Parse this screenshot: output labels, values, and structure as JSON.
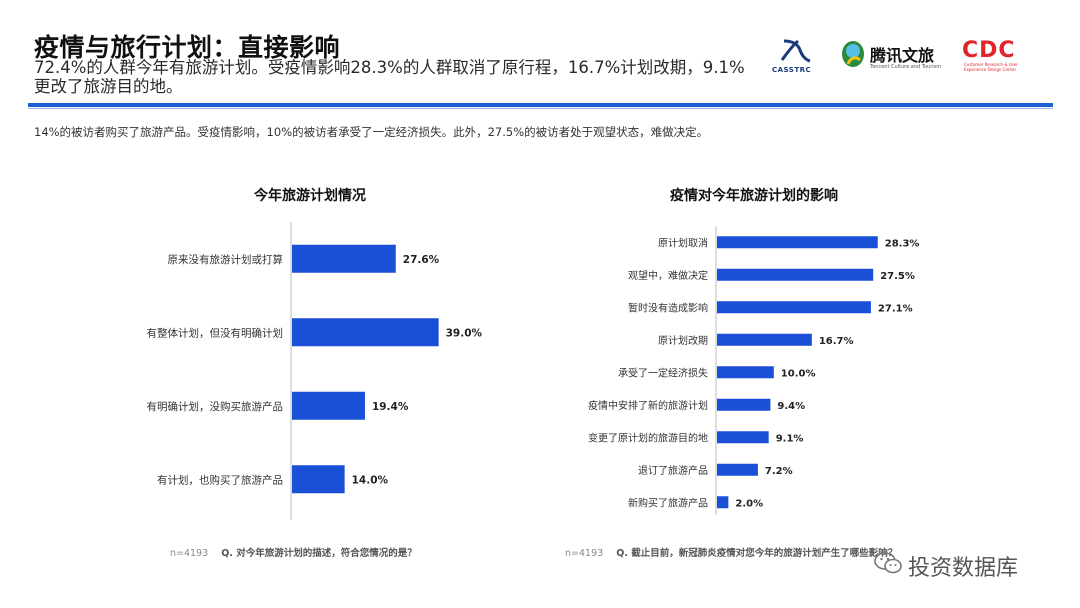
{
  "header": {
    "title": "疫情与旅行计划：直接影响",
    "subtitle": "72.4%的人群今年有旅游计划。受疫情影响28.3%的人群取消了原行程，16.7%计划改期，9.1%更改了旅游目的地。"
  },
  "logos": {
    "casstrc": "CASSTRC",
    "tencent": "腾讯文旅",
    "tencent_sub": "Tencent Culture and Tourism",
    "cdc": "CDC",
    "cdc_sub": "Customer Research & User Experience Design Center"
  },
  "note": "14%的被访者购买了旅游产品。受疫情影响，10%的被访者承受了一定经济损失。此外，27.5%的被访者处于观望状态，难做决定。",
  "chart_data": [
    {
      "type": "bar",
      "orientation": "horizontal",
      "title": "今年旅游计划情况",
      "categories": [
        "原来没有旅游计划或打算",
        "有整体计划，但没有明确计划",
        "有明确计划，没购买旅游产品",
        "有计划，也购买了旅游产品"
      ],
      "values": [
        27.6,
        39.0,
        19.4,
        14.0
      ],
      "labels": [
        "27.6%",
        "39.0%",
        "19.4%",
        "14.0%"
      ],
      "unit": "%",
      "color": "#1a4fd8"
    },
    {
      "type": "bar",
      "orientation": "horizontal",
      "title": "疫情对今年旅游计划的影响",
      "categories": [
        "原计划取消",
        "观望中，难做决定",
        "暂时没有造成影响",
        "原计划改期",
        "承受了一定经济损失",
        "疫情中安排了新的旅游计划",
        "变更了原计划的旅游目的地",
        "退订了旅游产品",
        "新购买了旅游产品"
      ],
      "values": [
        28.3,
        27.5,
        27.1,
        16.7,
        10.0,
        9.4,
        9.1,
        7.2,
        2.0
      ],
      "labels": [
        "28.3%",
        "27.5%",
        "27.1%",
        "16.7%",
        "10.0%",
        "9.4%",
        "9.1%",
        "7.2%",
        "2.0%"
      ],
      "unit": "%",
      "color": "#1a4fd8"
    }
  ],
  "footnotes": {
    "left_code": "n=4193",
    "left_q": "Q. 对今年旅游计划的描述，符合您情况的是？",
    "right_code": "n=4193",
    "right_q": "Q. 截止目前，新冠肺炎疫情对您今年的旅游计划产生了哪些影响？"
  },
  "watermark": "投资数据库"
}
